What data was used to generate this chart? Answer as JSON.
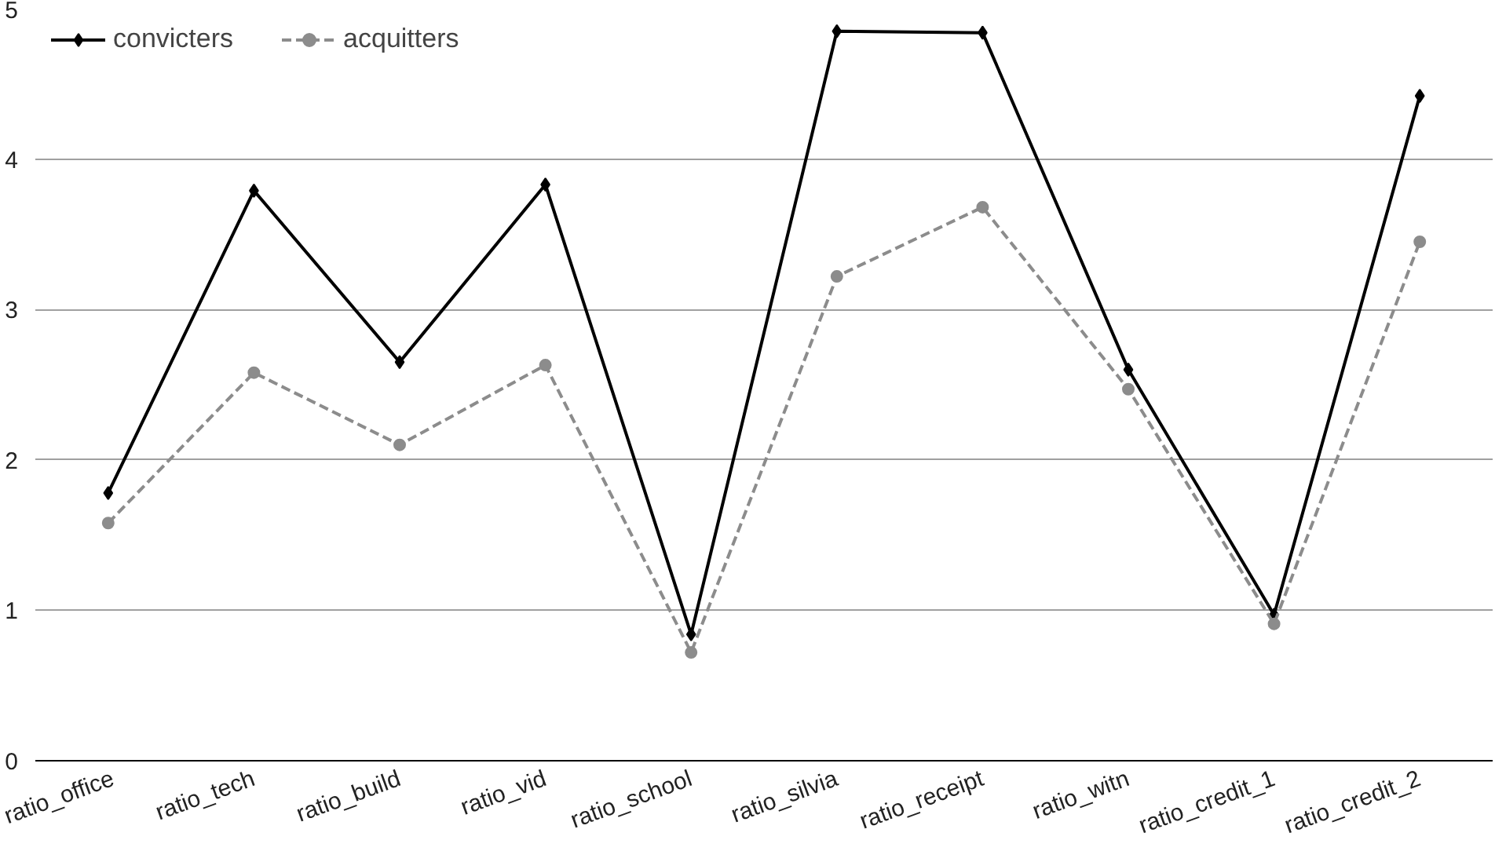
{
  "chart_data": {
    "type": "line",
    "categories": [
      "ratio_office",
      "ratio_tech",
      "ratio_build",
      "ratio_vid",
      "ratio_school",
      "ratio_silvia",
      "ratio_receipt",
      "ratio_witn",
      "ratio_credit_1",
      "ratio_credit_2"
    ],
    "series": [
      {
        "name": "convicters",
        "color": "#000000",
        "marker": "diamond",
        "line_style": "solid",
        "values": [
          1.78,
          3.79,
          2.65,
          3.83,
          0.84,
          4.85,
          4.84,
          2.6,
          0.97,
          4.42
        ]
      },
      {
        "name": "acquitters",
        "color": "#8c8c8c",
        "marker": "circle",
        "line_style": "dashed",
        "values": [
          1.58,
          2.58,
          2.1,
          2.63,
          0.72,
          3.22,
          3.68,
          2.47,
          0.91,
          3.45
        ]
      }
    ],
    "ylim": [
      0,
      5
    ],
    "yticks": [
      0,
      1,
      2,
      3,
      4,
      5
    ],
    "grid": "y",
    "legend": "top left"
  }
}
